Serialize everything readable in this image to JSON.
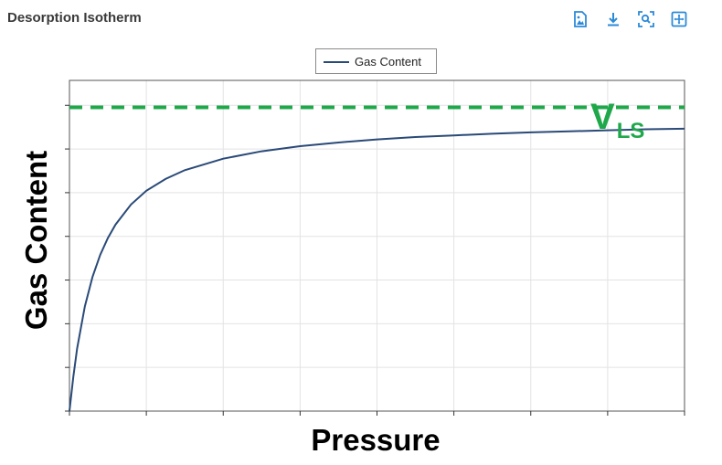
{
  "header": {
    "title": "Desorption Isotherm"
  },
  "toolbar": {
    "icons": [
      "export-image-icon",
      "download-icon",
      "zoom-icon",
      "reset-zoom-icon"
    ],
    "icon_color": "#2b8ad8"
  },
  "chart_data": {
    "type": "line",
    "title": "",
    "xlabel": "Pressure",
    "ylabel": "Gas Content",
    "xlim": [
      0,
      8
    ],
    "ylim": [
      0,
      8
    ],
    "grid": true,
    "legend": {
      "position": "top-center",
      "entries": [
        "Gas Content"
      ]
    },
    "series": [
      {
        "name": "Gas Content",
        "color": "#2a4a78",
        "x": [
          0,
          0.05,
          0.1,
          0.2,
          0.3,
          0.4,
          0.5,
          0.6,
          0.8,
          1.0,
          1.25,
          1.5,
          2.0,
          2.5,
          3.0,
          3.5,
          4.0,
          4.5,
          5.0,
          5.5,
          6.0,
          6.5,
          7.0,
          7.5,
          8.0
        ],
        "values": [
          0,
          1.01,
          1.86,
          3.1,
          3.98,
          4.63,
          5.13,
          5.53,
          6.12,
          6.53,
          6.88,
          7.14,
          7.48,
          7.7,
          7.85,
          7.96,
          8.05,
          8.12,
          8.17,
          8.22,
          8.26,
          8.29,
          8.32,
          8.35,
          8.37
        ]
      }
    ],
    "reference_line": {
      "label_main": "V",
      "label_sub": "LS",
      "y": 9.0,
      "color": "#1fa84a",
      "style": "dashed"
    }
  }
}
